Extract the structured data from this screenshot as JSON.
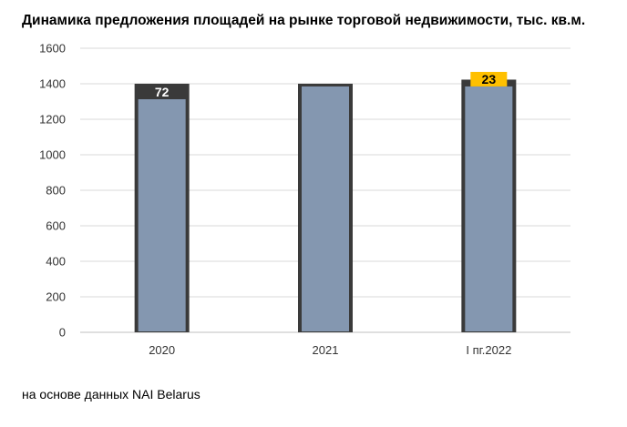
{
  "chart_data": {
    "type": "bar",
    "title": "Динамика предложения площадей на рынке торговой недвижимости, тыс. кв.м.",
    "categories": [
      "2020",
      "2021",
      "I пг.2022"
    ],
    "series": [
      {
        "values": [
          1318,
          1390,
          1390
        ]
      },
      {
        "values": [
          72,
          0,
          23
        ]
      }
    ],
    "data_labels": [
      "72",
      "",
      "23"
    ],
    "ylim": [
      0,
      1600
    ],
    "yticks": [
      0,
      200,
      400,
      600,
      800,
      1000,
      1200,
      1400,
      1600
    ],
    "grid": true,
    "colors": {
      "base": "#8497B0",
      "outline": "#3a3a3a",
      "increment_2020": "#3a3a3a",
      "increment_2022": "#FFC000",
      "grid": "#d9d9d9"
    }
  },
  "footer": {
    "source": "на основе данных NAI Belarus"
  }
}
